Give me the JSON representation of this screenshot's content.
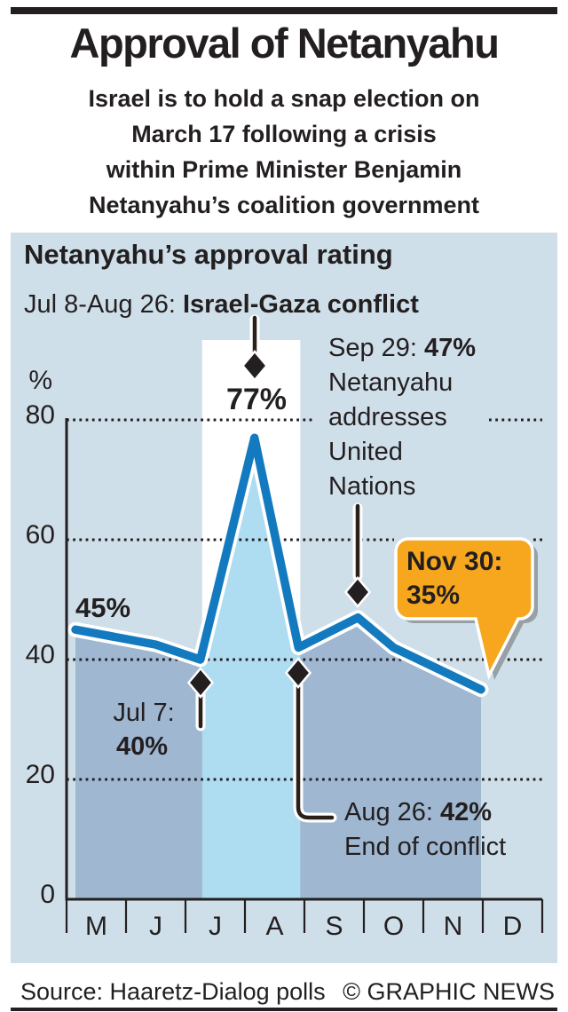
{
  "header": {
    "title": "Approval of Netanyahu",
    "subtitle": "Israel is to hold a snap election on\nMarch 17 following a crisis\nwithin Prime Minister Benjamin\nNetanyahu’s coalition government"
  },
  "panel": {
    "heading": "Netanyahu’s approval rating"
  },
  "conflict_annotation": {
    "prefix": "Jul 8-Aug 26: ",
    "label": "Israel-Gaza conflict"
  },
  "annotations": {
    "start": {
      "value_label": "45%"
    },
    "peak": {
      "value_label": "77%"
    },
    "jul7": {
      "date": "Jul 7:",
      "value": "40%"
    },
    "aug26": {
      "date": "Aug 26: ",
      "value": "42%",
      "desc": "End of conflict"
    },
    "sep29": {
      "date": "Sep 29: ",
      "value": "47%",
      "desc_lines": [
        "Netanyahu",
        "addresses",
        "United",
        "Nations"
      ]
    },
    "nov30": {
      "date": "Nov 30:",
      "value": "35%"
    }
  },
  "chart_data": {
    "type": "line",
    "title": "Netanyahu's approval rating",
    "ylabel": "%",
    "ylim": [
      0,
      80
    ],
    "yticks": [
      80,
      60,
      40,
      20,
      0
    ],
    "grid": "dotted horizontal",
    "categories": [
      "M",
      "J",
      "J",
      "A",
      "S",
      "O",
      "N",
      "D"
    ],
    "months_full": [
      "May",
      "Jun",
      "Jul",
      "Aug",
      "Sep",
      "Oct",
      "Nov",
      "Dec"
    ],
    "points": [
      {
        "t": 0.15,
        "value": 45,
        "label": "45%"
      },
      {
        "t": 1.5,
        "value": 42.5
      },
      {
        "t": 2.25,
        "value": 40,
        "label": "Jul 7: 40%"
      },
      {
        "t": 3.16,
        "value": 77,
        "label": "77%"
      },
      {
        "t": 3.9,
        "value": 42,
        "label": "Aug 26: 42% End of conflict"
      },
      {
        "t": 4.9,
        "value": 47,
        "label": "Sep 29: 47% Netanyahu addresses United Nations"
      },
      {
        "t": 5.5,
        "value": 42
      },
      {
        "t": 6.97,
        "value": 35,
        "label": "Nov 30: 35%"
      }
    ],
    "conflict_band": {
      "t0": 2.28,
      "t1": 3.93,
      "label": "Jul 8-Aug 26: Israel-Gaza conflict"
    }
  },
  "footer": {
    "source": "Source: Haaretz-Dialog polls",
    "credit": "© GRAPHIC NEWS"
  },
  "colors": {
    "ink": "#231f20",
    "panel": "#cfdfe9",
    "under": "#9fb7d0",
    "cyan": "#aedcf1",
    "line": "#147abf",
    "callout": "#f6a71d",
    "stem": "#2a201a",
    "shadow": "#98a0a6"
  }
}
